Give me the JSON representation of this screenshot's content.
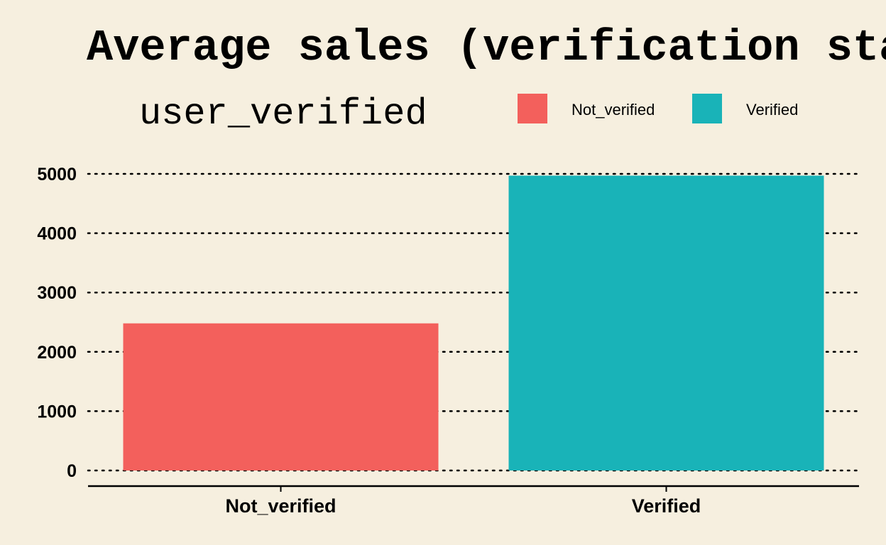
{
  "chart_data": {
    "type": "bar",
    "title": "Average sales (verification status)",
    "xlabel": "",
    "ylabel": "",
    "categories": [
      "Not_verified",
      "Verified"
    ],
    "values": [
      2480,
      4970
    ],
    "ylim": [
      0,
      5000
    ],
    "yticks": [
      0,
      1000,
      2000,
      3000,
      4000,
      5000
    ],
    "grid": "horizontal-dotted",
    "legend": {
      "title": "user_verified",
      "placement": "top",
      "entries": [
        "Not_verified",
        "Verified"
      ]
    },
    "colors": {
      "Not_verified": "#f3605c",
      "Verified": "#19b3b8"
    },
    "background": "#f6efdf"
  }
}
